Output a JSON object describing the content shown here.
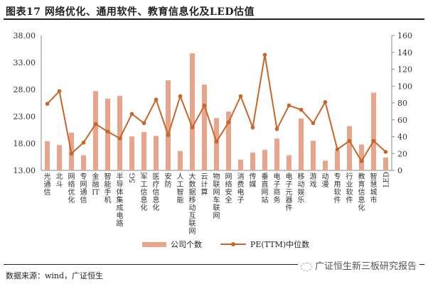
{
  "title": "图表17  网络优化、通用软件、教育信息化及LED估值",
  "source": "数据来源：wind，广证恒生",
  "watermark": "广证恒生新三板研究报告",
  "colors": {
    "bar": "#e8a58c",
    "line": "#c8662a",
    "axis": "#888888"
  },
  "legend": {
    "bar_label": "公司个数",
    "line_label": "PE(TTM)中位数"
  },
  "chart_data": {
    "type": "bar+line",
    "title": "图表17  网络优化、通用软件、教育信息化及LED估值",
    "categories": [
      "光通信",
      "北斗",
      "网络优化",
      "专网通信",
      "金融IT",
      "智能手机",
      "半导体集成电路",
      "5G",
      "军工信息化",
      "医疗信息化",
      "安防",
      "人工智能",
      "大数据移动互联网",
      "云计算",
      "物联网车联网",
      "网络安全",
      "消费电子",
      "传媒",
      "垂直网站",
      "电子商务",
      "电子元器件",
      "移动娱乐",
      "游戏",
      "动漫",
      "专用软件",
      "行业软件",
      "教育信息化",
      "智慧城市",
      "LED"
    ],
    "series": [
      {
        "name": "公司个数",
        "type": "bar",
        "axis": "left",
        "values": [
          18.4,
          17.7,
          20.0,
          15.8,
          27.7,
          26.3,
          26.8,
          19.3,
          20.1,
          19.4,
          29.7,
          16.6,
          34.7,
          28.9,
          22.7,
          23.9,
          15.0,
          16.3,
          16.8,
          18.9,
          15.8,
          22.6,
          18.5,
          14.8,
          16.6,
          21.2,
          17.8,
          27.4,
          15.4
        ]
      },
      {
        "name": "PE(TTM)中位数",
        "type": "line",
        "axis": "right",
        "values": [
          79,
          94,
          20,
          33,
          55,
          46,
          38,
          67,
          56,
          84,
          42,
          88,
          51,
          77,
          34,
          57,
          88,
          51,
          137,
          49,
          77,
          72,
          56,
          81,
          25,
          35,
          11,
          35,
          22
        ]
      }
    ],
    "left_axis": {
      "min": 13,
      "max": 38,
      "ticks": [
        "13.00",
        "18.00",
        "23.00",
        "28.00",
        "33.00",
        "38.00"
      ]
    },
    "right_axis": {
      "min": 0,
      "max": 160,
      "ticks": [
        "0",
        "20",
        "40",
        "60",
        "80",
        "100",
        "120",
        "140",
        "160"
      ]
    },
    "xlabel": "",
    "ylabel": "",
    "grid": false,
    "legend_position": "bottom"
  }
}
